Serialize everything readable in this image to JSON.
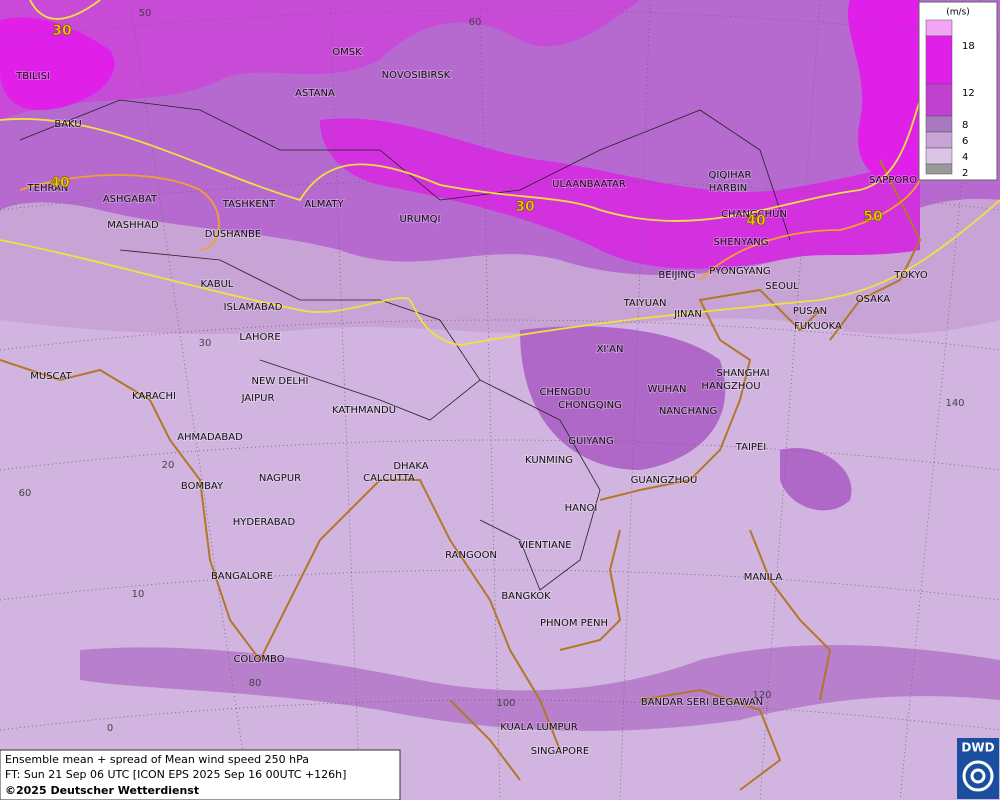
{
  "map": {
    "cities": [
      "TBILISI",
      "BAKU",
      "TEHRAN",
      "ASHGABAT",
      "MASHHAD",
      "TASHKENT",
      "ALMATY",
      "DUSHANBE",
      "OMSK",
      "ASTANA",
      "NOVOSIBIRSK",
      "URUMQI",
      "ULAANBAATAR",
      "QIQIHAR",
      "HARBIN",
      "CHANGCHUN",
      "SHENYANG",
      "SAPPORO",
      "BEIJING",
      "PYONGYANG",
      "SEOUL",
      "TOKYO",
      "OSAKA",
      "PUSAN",
      "FUKUOKA",
      "KABUL",
      "ISLAMABAD",
      "LAHORE",
      "TAIYUAN",
      "JINAN",
      "XI'AN",
      "MUSCAT",
      "NEW DELHI",
      "KARACHI",
      "JAIPUR",
      "SHANGHAI",
      "HANGZHOU",
      "CHENGDU",
      "WUHAN",
      "CHONGQING",
      "KATHMANDU",
      "NANCHANG",
      "AHMADABAD",
      "GUIYANG",
      "TAIPEI",
      "DHAKA",
      "KUNMING",
      "NAGPUR",
      "CALCUTTA",
      "GUANGZHOU",
      "BOMBAY",
      "HANOI",
      "HYDERABAD",
      "RANGOON",
      "VIENTIANE",
      "BANGALORE",
      "MANILA",
      "BANGKOK",
      "PHNOM PENH",
      "COLOMBO",
      "BANDAR SERI BEGAWAN",
      "KUALA LUMPUR",
      "SINGAPORE"
    ],
    "grid_labels": [
      "50",
      "60",
      "30",
      "20",
      "10",
      "0",
      "60",
      "80",
      "100",
      "120",
      "140"
    ],
    "contour_labels": [
      "30",
      "40",
      "30",
      "40",
      "50"
    ]
  },
  "legend": {
    "unit": "(m/s)",
    "levels": [
      18,
      12,
      8,
      6,
      4,
      2
    ]
  },
  "footer": {
    "line1": "Ensemble mean + spread of Mean wind speed 250 hPa",
    "line2": "FT: Sun 21 Sep 06 UTC [ICON EPS 2025 Sep 16 00UTC +126h]",
    "line3": "©2025 Deutscher Wetterdienst"
  },
  "logo": "DWD"
}
